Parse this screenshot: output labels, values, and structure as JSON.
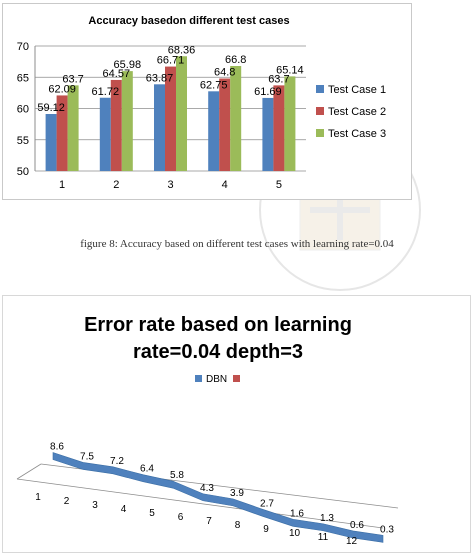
{
  "caption": "figure 8: Accuracy based on different test cases with learning rate=0.04",
  "chart_data": [
    {
      "type": "bar",
      "title": "Accuracy basedon different test cases",
      "categories": [
        "1",
        "2",
        "3",
        "4",
        "5"
      ],
      "series": [
        {
          "name": "Test Case 1",
          "color": "#4f81bd",
          "values": [
            59.12,
            61.72,
            63.87,
            62.75,
            61.69
          ]
        },
        {
          "name": "Test Case 2",
          "color": "#c0504d",
          "values": [
            62.09,
            64.57,
            66.71,
            64.8,
            63.7
          ]
        },
        {
          "name": "Test Case 3",
          "color": "#9bbb59",
          "values": [
            63.7,
            65.98,
            68.36,
            66.8,
            65.14
          ]
        }
      ],
      "ylim": [
        50,
        70
      ],
      "yticks": [
        50,
        55,
        60,
        65,
        70
      ],
      "grid": true,
      "legend": "right"
    },
    {
      "type": "line",
      "title_lines": [
        "Error rate based on learning",
        "rate=0.04 depth=3"
      ],
      "categories": [
        "1",
        "2",
        "3",
        "4",
        "5",
        "6",
        "7",
        "8",
        "9",
        "10",
        "11",
        "12"
      ],
      "series": [
        {
          "name": "DBN",
          "color": "#4f81bd",
          "values": [
            8.6,
            7.5,
            7.2,
            6.4,
            5.8,
            4.3,
            3.9,
            2.7,
            1.6,
            1.3,
            0.6,
            0.3
          ]
        }
      ],
      "legend_extra_color": "#c0504d",
      "legend": "top",
      "style": "3d-ribbon"
    }
  ]
}
